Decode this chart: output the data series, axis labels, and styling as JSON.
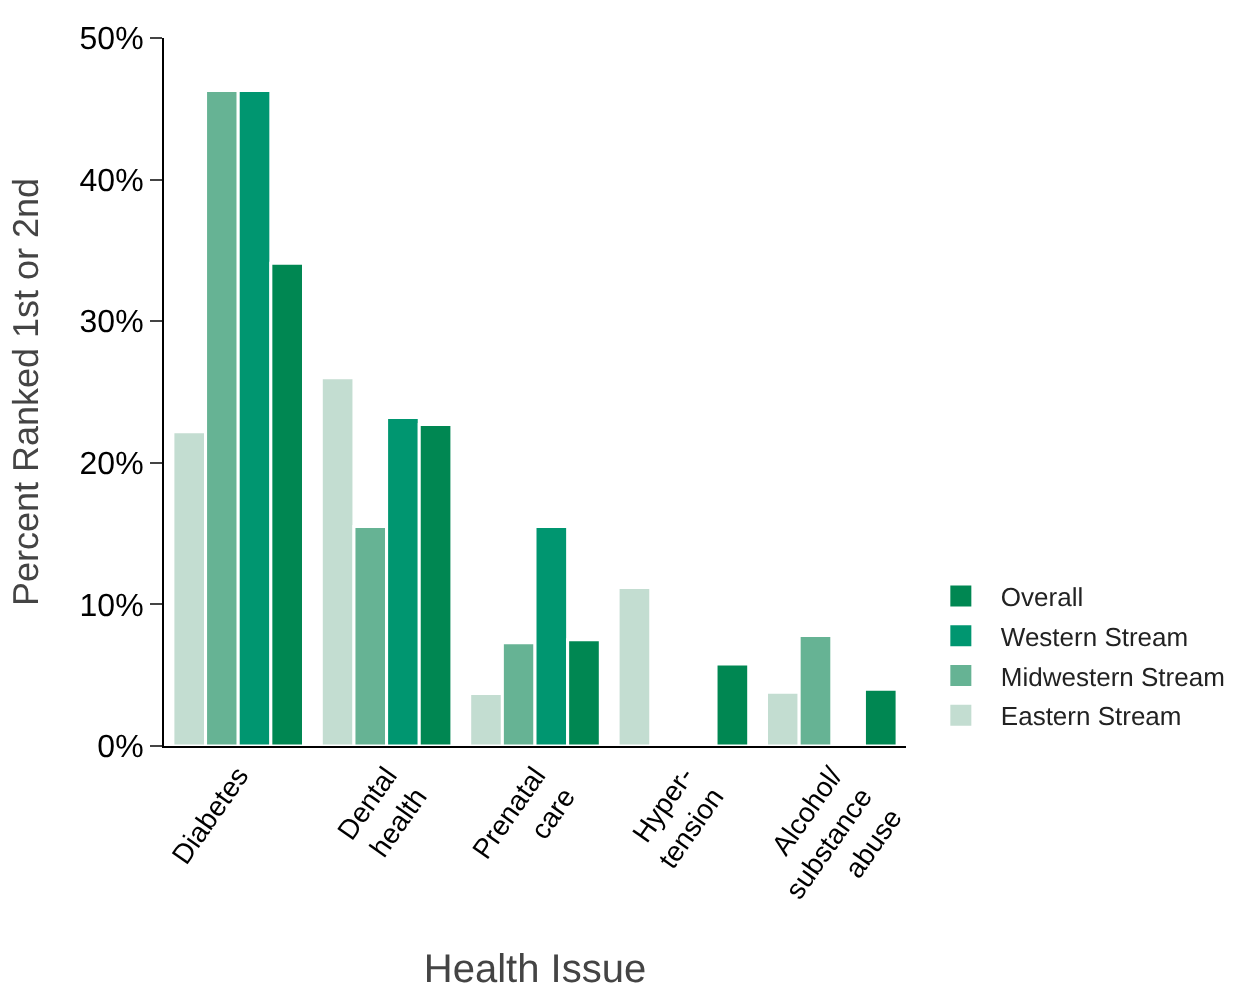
{
  "chart_data": {
    "type": "bar",
    "xlabel": "Health Issue",
    "ylabel": "Percent Ranked 1st or 2nd",
    "categories": [
      "Diabetes",
      "Dental\nhealth",
      "Prenatal\ncare",
      "Hyper-\ntension",
      "Alcohol/\nsubstance\nabuse"
    ],
    "series": [
      {
        "name": "Eastern Stream",
        "color": "#c3ddd1",
        "values": [
          22.2,
          26.0,
          3.7,
          11.2,
          3.8
        ]
      },
      {
        "name": "Midwestern Stream",
        "color": "#66b394",
        "values": [
          46.3,
          15.5,
          7.3,
          null,
          7.8
        ]
      },
      {
        "name": "Western Stream",
        "color": "#009670",
        "values": [
          46.3,
          23.2,
          15.5,
          null,
          null
        ]
      },
      {
        "name": "Overall",
        "color": "#008752",
        "values": [
          34.1,
          22.7,
          7.5,
          5.8,
          4.0
        ]
      }
    ],
    "ylim": [
      0,
      50
    ],
    "yticks": [
      {
        "value": 0,
        "label": "0%"
      },
      {
        "value": 10,
        "label": "10%"
      },
      {
        "value": 20,
        "label": "20%"
      },
      {
        "value": 30,
        "label": "30%"
      },
      {
        "value": 40,
        "label": "40%"
      },
      {
        "value": 50,
        "label": "50%"
      }
    ],
    "legend": "bottom right"
  }
}
